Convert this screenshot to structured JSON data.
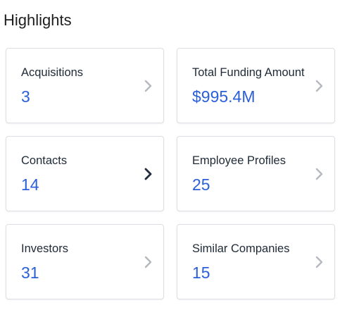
{
  "header": {
    "title": "Highlights"
  },
  "colors": {
    "value": "#2b5fd9",
    "chevron_muted": "#b5b9bf",
    "chevron_active": "#1f2d3d"
  },
  "cards": [
    {
      "label": "Acquisitions",
      "value": "3",
      "chevron_icon": "chevron-right-icon",
      "active": false
    },
    {
      "label": "Total Funding Amount",
      "value": "$995.4M",
      "chevron_icon": "chevron-right-icon",
      "active": false
    },
    {
      "label": "Contacts",
      "value": "14",
      "chevron_icon": "chevron-right-icon",
      "active": true
    },
    {
      "label": "Employee Profiles",
      "value": "25",
      "chevron_icon": "chevron-right-icon",
      "active": false
    },
    {
      "label": "Investors",
      "value": "31",
      "chevron_icon": "chevron-right-icon",
      "active": false
    },
    {
      "label": "Similar Companies",
      "value": "15",
      "chevron_icon": "chevron-right-icon",
      "active": false
    }
  ]
}
